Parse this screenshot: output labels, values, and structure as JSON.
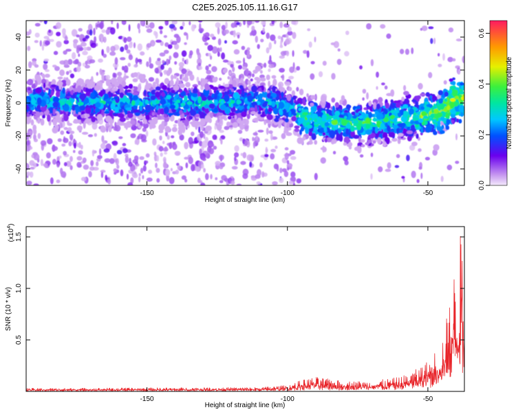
{
  "title": "C2E5.2025.105.11.16.G17",
  "chart_data": [
    {
      "type": "heatmap",
      "xlabel": "Height of straight line (km)",
      "ylabel": "Frequency (Hz)",
      "xlim": [
        -193,
        -37
      ],
      "ylim": [
        -50,
        50
      ],
      "xticks": [
        -150,
        -100,
        -50
      ],
      "yticks": [
        -40,
        -20,
        0,
        20,
        40
      ],
      "ridge": {
        "x": [
          -193,
          -175,
          -150,
          -125,
          -110,
          -100,
          -95,
          -90,
          -80,
          -70,
          -60,
          -50,
          -45,
          -40,
          -37
        ],
        "y": [
          2,
          0,
          0,
          0,
          2,
          -3,
          -8,
          -11,
          -12,
          -12,
          -9,
          -7,
          -5,
          3,
          3
        ]
      },
      "colorbar": {
        "label": "Normalized spectral amplitude",
        "range": [
          0.0,
          0.65
        ],
        "ticks": [
          "0.0",
          "0.2",
          "0.4",
          "0.6"
        ]
      }
    },
    {
      "type": "line",
      "xlabel": "Height of straight line (km)",
      "ylabel": "SNR (10 * v/v)",
      "scale_label": "(x10",
      "scale_exp": "4",
      "scale_close": ")",
      "xlim": [
        -193,
        -37
      ],
      "ylim": [
        0,
        1.6
      ],
      "xticks": [
        -150,
        -100,
        -50
      ],
      "yticks": [
        "0.5",
        "1.0",
        "1.5"
      ],
      "color": "#e8252a",
      "envelope": {
        "x": [
          -193,
          -150,
          -110,
          -100,
          -95,
          -90,
          -85,
          -80,
          -70,
          -60,
          -55,
          -50,
          -45,
          -42,
          -40,
          -38,
          -37
        ],
        "y": [
          0.03,
          0.035,
          0.04,
          0.06,
          0.11,
          0.14,
          0.12,
          0.1,
          0.1,
          0.14,
          0.2,
          0.3,
          0.5,
          0.9,
          1.3,
          1.6,
          1.1
        ]
      }
    }
  ]
}
